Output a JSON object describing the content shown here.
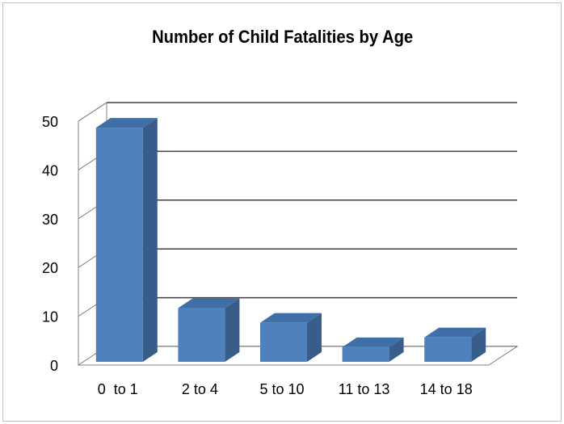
{
  "chart_data": {
    "type": "bar",
    "title": "Number of Child Fatalities by Age",
    "xlabel": "",
    "ylabel": "",
    "categories": [
      "0  to 1",
      "2 to 4",
      "5 to 10",
      "11 to 13",
      "14 to 18"
    ],
    "values": [
      48,
      11,
      8,
      3,
      5
    ],
    "ylim": [
      0,
      50
    ],
    "yticks": [
      "0",
      "10",
      "20",
      "30",
      "40",
      "50"
    ],
    "grid": true,
    "legend": "none",
    "style": "3d-column",
    "colors": {
      "bar_front": "#4f81bd",
      "bar_side": "#385d8a",
      "bar_top": "#3f6fa6",
      "grid": "#404040",
      "wall": "#ffffff",
      "floor_edge": "#808080"
    }
  }
}
